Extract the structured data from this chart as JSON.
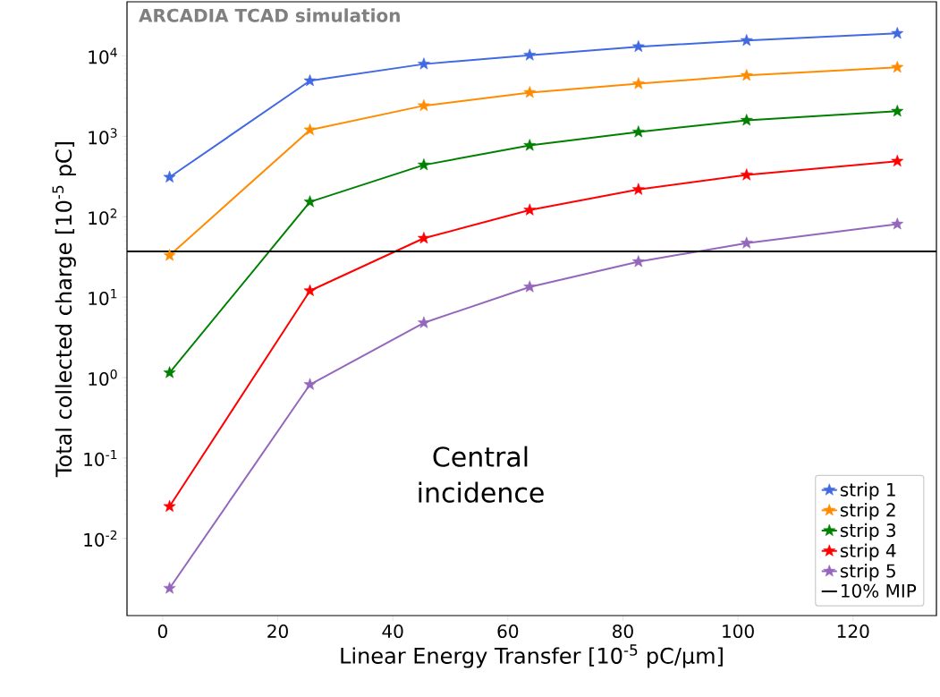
{
  "chart_data": {
    "type": "line",
    "xlabel": "Linear Energy Transfer [10$^{-5}$ pC/μm]",
    "ylabel": "Total collected charge [10$^{-5}$ pC]",
    "annotations": [
      "**ARCADIA TCAD simulation**",
      "Central incidence"
    ],
    "x": [
      1.2,
      25.6,
      45.4,
      63.8,
      82.7,
      101.5,
      127.7
    ],
    "series": [
      {
        "name": "strip 1",
        "color": "#4169e1",
        "values": [
          310,
          4900,
          7900,
          10200,
          13000,
          15500,
          19000
        ]
      },
      {
        "name": "strip 2",
        "color": "#ff8c00",
        "values": [
          33,
          1200,
          2400,
          3500,
          4500,
          5700,
          7200
        ]
      },
      {
        "name": "strip 3",
        "color": "#008000",
        "values": [
          1.15,
          153,
          440,
          770,
          1130,
          1580,
          2050
        ]
      },
      {
        "name": "strip 4",
        "color": "#ff0000",
        "values": [
          0.025,
          12,
          54,
          121,
          218,
          330,
          490
        ]
      },
      {
        "name": "strip 5",
        "color": "#9467bd",
        "values": [
          0.0024,
          0.82,
          4.8,
          13.4,
          27.6,
          47,
          81
        ]
      }
    ],
    "ref_lines": [
      {
        "axis": "y",
        "value": 37,
        "label": "10% MIP",
        "color": "#000000"
      }
    ],
    "log": "y",
    "marker": "star",
    "legend": "bottom right",
    "grid": false,
    "xlim": [
      -6.2,
      134.5
    ],
    "ylim": [
      0.0011,
      47000
    ],
    "xticks": [
      0,
      20,
      40,
      60,
      80,
      100,
      120
    ],
    "yticks": [
      {
        "value": 0.01,
        "label": "10$^{-2}$"
      },
      {
        "value": 0.1,
        "label": "10$^{-1}$"
      },
      {
        "value": 1,
        "label": "10$^{0}$"
      },
      {
        "value": 10,
        "label": "10$^{1}$"
      },
      {
        "value": 100,
        "label": "10$^{2}$"
      },
      {
        "value": 1000,
        "label": "10$^{3}$"
      },
      {
        "value": 10000,
        "label": "10$^{4}$"
      }
    ]
  }
}
